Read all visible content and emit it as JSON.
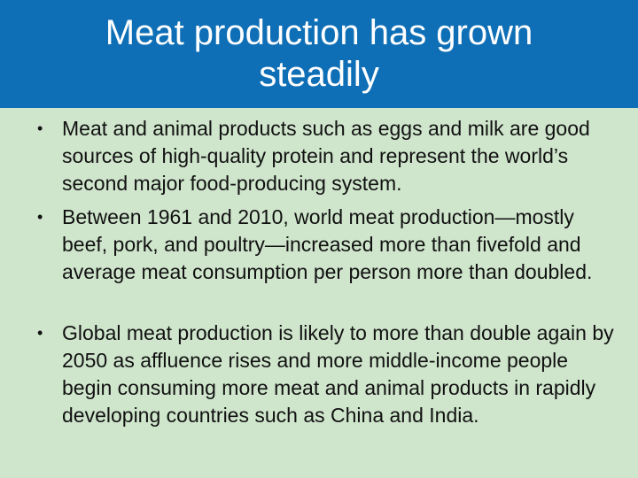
{
  "slide": {
    "title": "Meat production has grown steadily",
    "bullets": [
      {
        "text": "Meat and animal products such as eggs and milk are good sources of high-quality protein and represent the world’s second major food-producing system."
      },
      {
        "text": " Between 1961 and 2010, world meat production—mostly beef, pork, and poultry—increased more than fivefold and average meat consumption per person more than doubled."
      },
      {
        "text": " Global meat production is likely to more than double again by 2050 as affluence rises and more middle-income people begin consuming more meat and animal products in rapidly developing countries such as China and India."
      }
    ],
    "bullet_symbol": "•"
  },
  "colors": {
    "title_bar": "#0f6fb6",
    "background": "#cfe6cc",
    "title_text": "#ffffff",
    "body_text": "#111111"
  }
}
